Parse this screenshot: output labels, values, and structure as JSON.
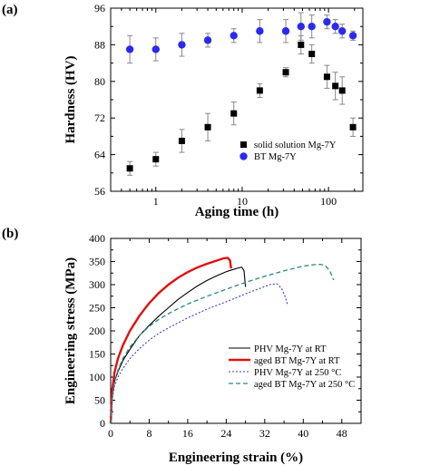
{
  "chart_data": [
    {
      "type": "scatter",
      "panel": "(a)",
      "xlabel": "Aging time (h)",
      "ylabel": "Hardness (HV)",
      "xscale": "log",
      "xlim": [
        0.3,
        250
      ],
      "ylim": [
        56,
        96
      ],
      "xticks": [
        1,
        10,
        100
      ],
      "xtick_labels": [
        "1",
        "10",
        "100"
      ],
      "yticks": [
        56,
        64,
        72,
        80,
        88,
        96
      ],
      "legend_position": "bottom-right",
      "series": [
        {
          "name": "solid solution Mg-7Y",
          "marker": "square",
          "color": "#000000",
          "x": [
            0.5,
            1,
            2,
            4,
            8,
            16,
            32,
            48,
            64,
            96,
            120,
            144,
            192
          ],
          "y": [
            61,
            63,
            67,
            70,
            73,
            78,
            82,
            88,
            86,
            81,
            79,
            78,
            70
          ],
          "err": [
            1.5,
            1.5,
            2.5,
            3.0,
            2.5,
            1.5,
            1.0,
            2.0,
            2.0,
            2.5,
            3.0,
            3.0,
            2.0
          ]
        },
        {
          "name": "BT Mg-7Y",
          "marker": "circle",
          "color": "#2a2aee",
          "x": [
            0.5,
            1,
            2,
            4,
            8,
            16,
            32,
            48,
            64,
            96,
            120,
            144,
            192
          ],
          "y": [
            87,
            87,
            88,
            89,
            90,
            91,
            91,
            92,
            92,
            93,
            92,
            91,
            90
          ],
          "err": [
            3.0,
            2.5,
            2.5,
            1.5,
            1.5,
            2.5,
            2.5,
            3.0,
            2.5,
            1.5,
            1.5,
            1.5,
            1.0
          ]
        }
      ]
    },
    {
      "type": "line",
      "panel": "(b)",
      "xlabel": "Engineering strain (%)",
      "ylabel": "Engineering stress (MPa)",
      "xlim": [
        0,
        52
      ],
      "ylim": [
        0,
        400
      ],
      "xticks": [
        0,
        8,
        16,
        24,
        32,
        40,
        48
      ],
      "yticks": [
        0,
        50,
        100,
        150,
        200,
        250,
        300,
        350,
        400
      ],
      "legend_position": "bottom-right",
      "series": [
        {
          "name": "PHV Mg-7Y at RT",
          "style": "solid",
          "color": "#000000",
          "x": [
            0,
            0.3,
            0.8,
            1.5,
            2.5,
            4,
            6,
            8,
            10,
            12,
            14,
            16,
            18,
            20,
            22,
            24,
            25.5,
            26.5,
            27.2,
            27.7,
            28.0
          ],
          "y": [
            0,
            60,
            90,
            112,
            135,
            160,
            190,
            212,
            232,
            250,
            268,
            283,
            297,
            309,
            319,
            328,
            333,
            336,
            338,
            330,
            295
          ]
        },
        {
          "name": "aged BT Mg-7Y at RT",
          "style": "solid-thick",
          "color": "#e01010",
          "x": [
            0,
            0.3,
            0.8,
            1.5,
            2.5,
            4,
            6,
            8,
            10,
            12,
            14,
            16,
            18,
            20,
            22,
            23.5,
            24.3,
            24.8,
            25.0
          ],
          "y": [
            0,
            70,
            110,
            140,
            168,
            200,
            233,
            260,
            282,
            300,
            315,
            327,
            337,
            345,
            352,
            357,
            358,
            352,
            335
          ]
        },
        {
          "name": "PHV Mg-7Y at 250 °C",
          "style": "dotted",
          "color": "#3a3ae0",
          "x": [
            0,
            0.3,
            0.8,
            1.5,
            2.5,
            4,
            6,
            8,
            10,
            13,
            16,
            20,
            24,
            28,
            31,
            33,
            34.5,
            35.5,
            36.2,
            36.8
          ],
          "y": [
            0,
            50,
            80,
            100,
            118,
            140,
            162,
            180,
            195,
            212,
            228,
            247,
            263,
            280,
            292,
            300,
            302,
            292,
            275,
            255
          ]
        },
        {
          "name": "aged BT Mg-7Y at 250 °C",
          "style": "dashed",
          "color": "#2a8a7a",
          "x": [
            0,
            0.3,
            0.8,
            1.5,
            2.5,
            4,
            6,
            8,
            10,
            13,
            16,
            20,
            24,
            28,
            32,
            36,
            40,
            42,
            43.5,
            44.5,
            45.5,
            46.3
          ],
          "y": [
            0,
            55,
            90,
            115,
            140,
            165,
            190,
            210,
            225,
            243,
            258,
            275,
            290,
            305,
            318,
            330,
            340,
            343,
            344,
            342,
            330,
            310
          ]
        }
      ]
    }
  ]
}
